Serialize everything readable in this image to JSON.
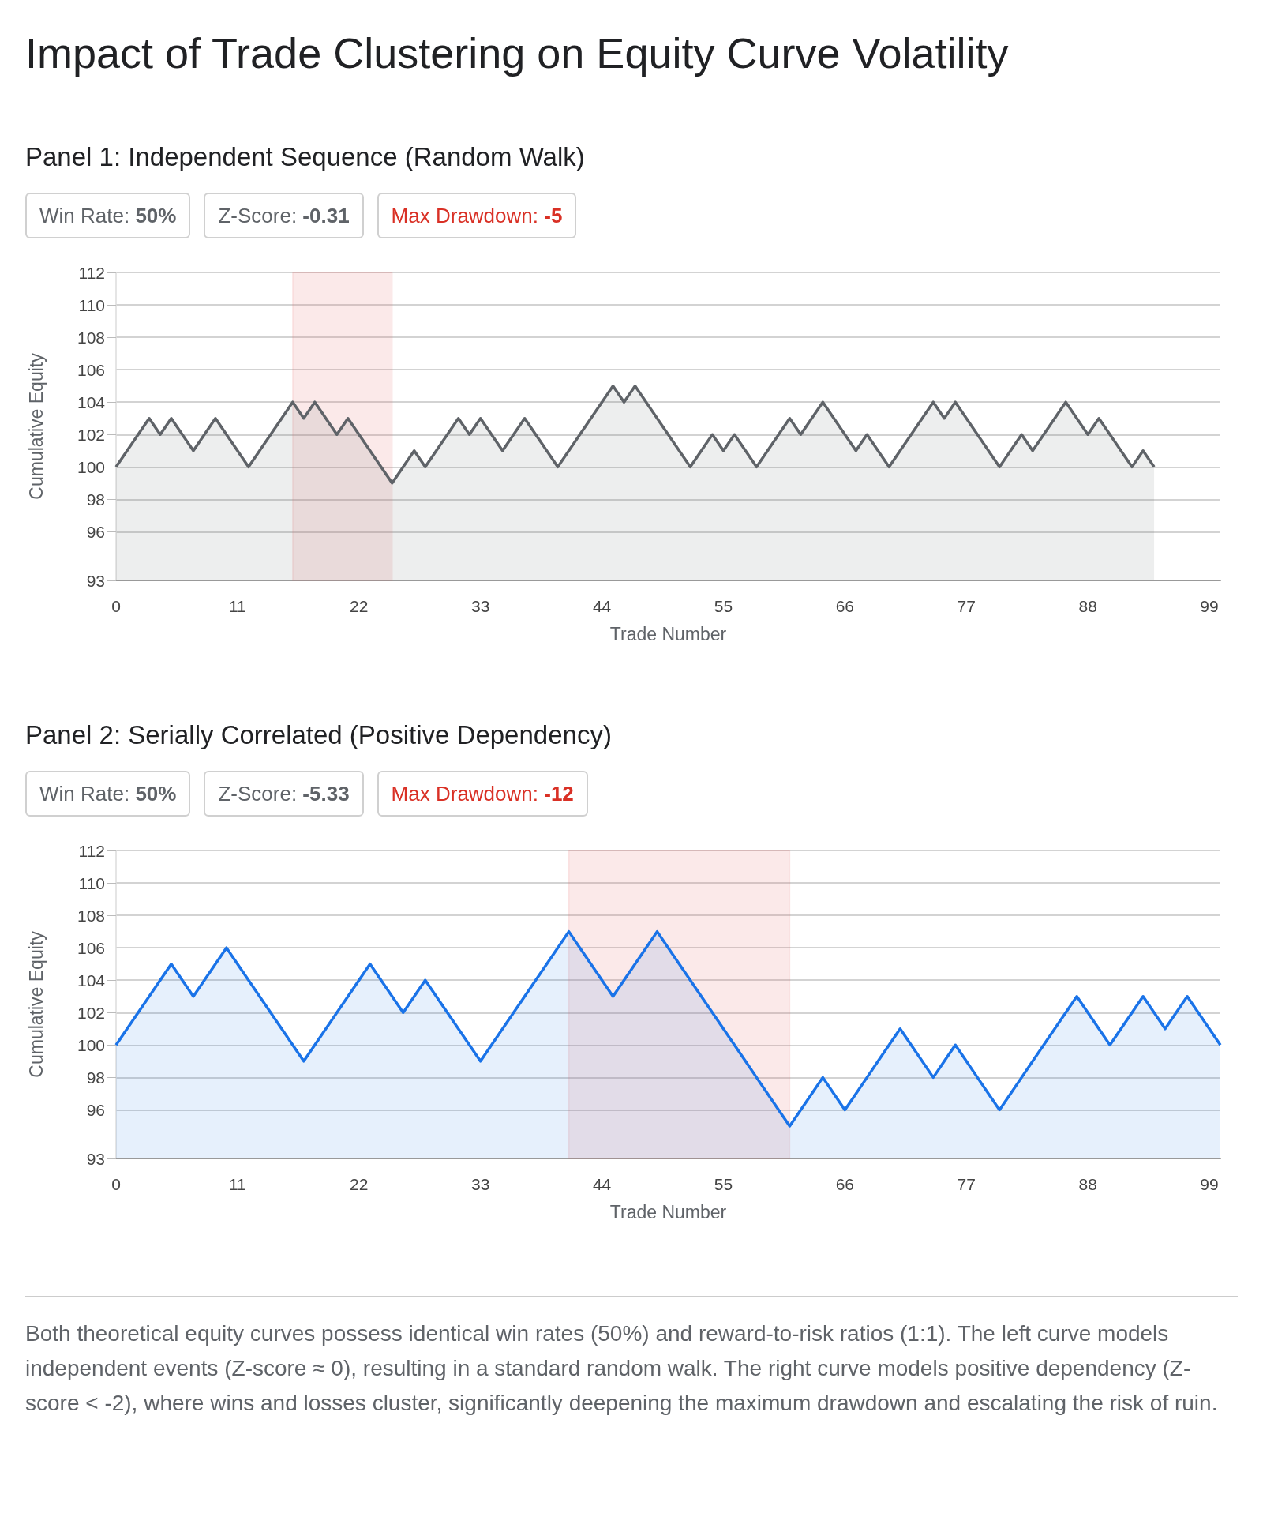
{
  "chart_data": [
    {
      "type": "area",
      "title": "Impact of Trade Clustering on Equity Curve Volatility",
      "subtitle": "Panel 1: Independent Sequence (Random Walk)",
      "xlabel": "Trade Number",
      "ylabel": "Cumulative Equity",
      "annotations": [
        "Win Rate: 50%",
        "Z-Score: -0.31",
        "Max Drawdown: -5"
      ],
      "series": [
        {
          "color": "#5f6368",
          "x": [
            0,
            1,
            2,
            3,
            4,
            5,
            6,
            7,
            8,
            9,
            10,
            11,
            12,
            13,
            14,
            15,
            16,
            17,
            18,
            19,
            20,
            21,
            22,
            23,
            24,
            25,
            26,
            27,
            28,
            29,
            30,
            31,
            32,
            33,
            34,
            35,
            36,
            37,
            38,
            39,
            40,
            41,
            42,
            43,
            44,
            45,
            46,
            47,
            48,
            49,
            50,
            51,
            52,
            53,
            54,
            55,
            56,
            57,
            58,
            59,
            60,
            61,
            62,
            63,
            64,
            65,
            66,
            67,
            68,
            69,
            70,
            71,
            72,
            73,
            74,
            75,
            76,
            77,
            78,
            79,
            80,
            81,
            82,
            83,
            84,
            85,
            86,
            87,
            88,
            89,
            90,
            91,
            92,
            93,
            94
          ],
          "values": [
            100,
            101,
            102,
            103,
            102,
            103,
            102,
            101,
            102,
            103,
            102,
            101,
            100,
            101,
            102,
            103,
            104,
            103,
            104,
            103,
            102,
            103,
            102,
            101,
            100,
            99,
            100,
            101,
            100,
            101,
            102,
            103,
            102,
            103,
            102,
            101,
            102,
            103,
            102,
            101,
            100,
            101,
            102,
            103,
            104,
            105,
            104,
            105,
            104,
            103,
            102,
            101,
            100,
            101,
            102,
            101,
            102,
            101,
            100,
            101,
            102,
            103,
            102,
            103,
            104,
            103,
            102,
            101,
            102,
            101,
            100,
            101,
            102,
            103,
            104,
            103,
            104,
            103,
            102,
            101,
            100,
            101,
            102,
            101,
            102,
            103,
            104,
            103,
            102,
            103,
            102,
            101,
            100,
            101,
            100
          ]
        }
      ],
      "xlim": [
        0,
        100
      ],
      "xticks": [
        0,
        11,
        22,
        33,
        44,
        55,
        66,
        77,
        88,
        99
      ],
      "ylim": [
        93,
        112
      ],
      "yticks": [
        93,
        96,
        98,
        100,
        102,
        104,
        106,
        108,
        110,
        112
      ],
      "bands": [
        {
          "axis": "x",
          "from": 16,
          "to": 25,
          "color": "#e06666"
        }
      ],
      "grid": "y",
      "marker": "none",
      "line_style": "solid"
    },
    {
      "type": "area",
      "subtitle": "Panel 2: Serially Correlated (Positive Dependency)",
      "xlabel": "Trade Number",
      "ylabel": "Cumulative Equity",
      "annotations": [
        "Win Rate: 50%",
        "Z-Score: -5.33",
        "Max Drawdown: -12",
        "Both theoretical equity curves possess identical win rates (50%) and reward-to-risk ratios (1:1). The left curve models independent events (Z-score ≈ 0), resulting in a standard random walk. The right curve models positive dependency (Z-score < -2), where wins and losses cluster, significantly deepening the maximum drawdown and escalating the risk of ruin."
      ],
      "series": [
        {
          "color": "#1a73e8",
          "x": [
            0,
            1,
            2,
            3,
            4,
            5,
            6,
            7,
            8,
            9,
            10,
            11,
            12,
            13,
            14,
            15,
            16,
            17,
            18,
            19,
            20,
            21,
            22,
            23,
            24,
            25,
            26,
            27,
            28,
            29,
            30,
            31,
            32,
            33,
            34,
            35,
            36,
            37,
            38,
            39,
            40,
            41,
            42,
            43,
            44,
            45,
            46,
            47,
            48,
            49,
            50,
            51,
            52,
            53,
            54,
            55,
            56,
            57,
            58,
            59,
            60,
            61,
            62,
            63,
            64,
            65,
            66,
            67,
            68,
            69,
            70,
            71,
            72,
            73,
            74,
            75,
            76,
            77,
            78,
            79,
            80,
            81,
            82,
            83,
            84,
            85,
            86,
            87,
            88,
            89,
            90,
            91,
            92,
            93,
            94,
            95,
            96,
            97,
            98,
            99,
            100
          ],
          "values": [
            100,
            101,
            102,
            103,
            104,
            105,
            104,
            103,
            104,
            105,
            106,
            105,
            104,
            103,
            102,
            101,
            100,
            99,
            100,
            101,
            102,
            103,
            104,
            105,
            104,
            103,
            102,
            103,
            104,
            103,
            102,
            101,
            100,
            99,
            100,
            101,
            102,
            103,
            104,
            105,
            106,
            107,
            106,
            105,
            104,
            103,
            104,
            105,
            106,
            107,
            106,
            105,
            104,
            103,
            102,
            101,
            100,
            99,
            98,
            97,
            96,
            95,
            96,
            97,
            98,
            97,
            96,
            97,
            98,
            99,
            100,
            101,
            100,
            99,
            98,
            99,
            100,
            99,
            98,
            97,
            96,
            97,
            98,
            99,
            100,
            101,
            102,
            103,
            102,
            101,
            100,
            101,
            102,
            103,
            102,
            101,
            102,
            103,
            102,
            101,
            100
          ]
        }
      ],
      "xlim": [
        0,
        100
      ],
      "xticks": [
        0,
        11,
        22,
        33,
        44,
        55,
        66,
        77,
        88,
        99
      ],
      "ylim": [
        93,
        112
      ],
      "yticks": [
        93,
        96,
        98,
        100,
        102,
        104,
        106,
        108,
        110,
        112
      ],
      "bands": [
        {
          "axis": "x",
          "from": 41,
          "to": 61,
          "color": "#e06666"
        }
      ],
      "grid": "y",
      "marker": "none",
      "line_style": "solid"
    }
  ]
}
